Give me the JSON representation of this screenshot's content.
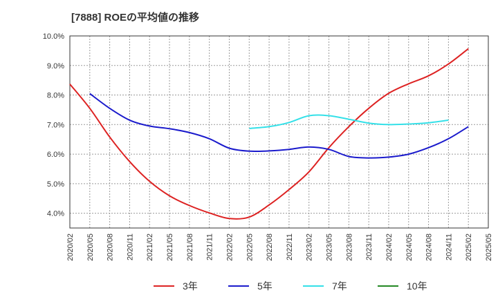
{
  "chart_data": {
    "type": "line",
    "title": "[7888]  ROEの平均値の推移",
    "xlabel": "",
    "ylabel": "",
    "ylim": [
      3.5,
      10.0
    ],
    "yticks": [
      {
        "value": 4.0,
        "label": "4.0%"
      },
      {
        "value": 5.0,
        "label": "5.0%"
      },
      {
        "value": 6.0,
        "label": "6.0%"
      },
      {
        "value": 7.0,
        "label": "7.0%"
      },
      {
        "value": 8.0,
        "label": "8.0%"
      },
      {
        "value": 9.0,
        "label": "9.0%"
      },
      {
        "value": 10.0,
        "label": "10.0%"
      }
    ],
    "x_categories": [
      "2020/02",
      "2020/05",
      "2020/08",
      "2020/11",
      "2021/02",
      "2021/05",
      "2021/08",
      "2021/11",
      "2022/02",
      "2022/05",
      "2022/08",
      "2022/11",
      "2023/02",
      "2023/05",
      "2023/08",
      "2023/11",
      "2024/02",
      "2024/05",
      "2024/08",
      "2024/11",
      "2025/02",
      "2025/05"
    ],
    "grid": true,
    "legend_position": "bottom",
    "series": [
      {
        "name": "3年",
        "color": "#dd2222",
        "start_index": 0,
        "values": [
          8.37,
          7.55,
          6.58,
          5.75,
          5.08,
          4.59,
          4.26,
          4.01,
          3.82,
          3.87,
          4.28,
          4.8,
          5.4,
          6.22,
          6.93,
          7.55,
          8.06,
          8.38,
          8.65,
          9.05,
          9.57
        ]
      },
      {
        "name": "5年",
        "color": "#1a1acc",
        "start_index": 1,
        "values": [
          8.05,
          7.55,
          7.15,
          6.95,
          6.86,
          6.73,
          6.52,
          6.2,
          6.1,
          6.11,
          6.16,
          6.24,
          6.16,
          5.92,
          5.87,
          5.9,
          6.0,
          6.22,
          6.52,
          6.93
        ]
      },
      {
        "name": "7年",
        "color": "#33e0e8",
        "start_index": 9,
        "values": [
          6.87,
          6.93,
          7.07,
          7.3,
          7.3,
          7.18,
          7.05,
          7.0,
          7.02,
          7.06,
          7.15
        ]
      },
      {
        "name": "10年",
        "color": "#228822",
        "start_index": 0,
        "values": []
      }
    ]
  }
}
